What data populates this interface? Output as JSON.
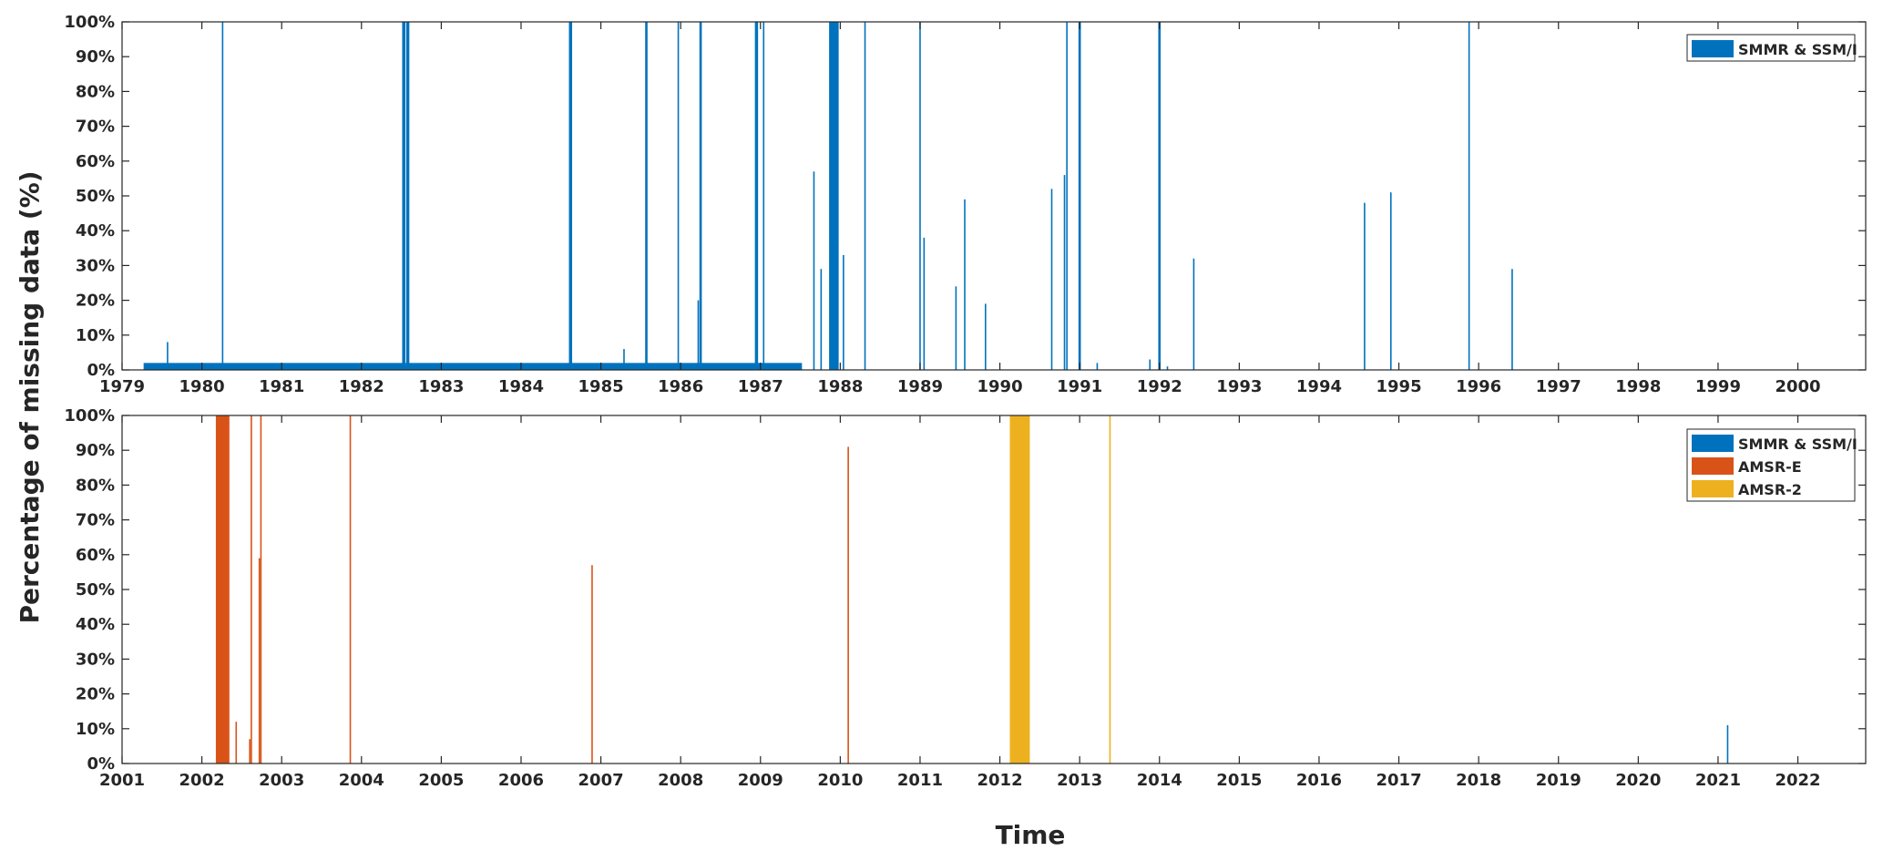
{
  "figure": {
    "ylabel": "Percentage of missing data (%)",
    "xlabel": "Time"
  },
  "colors": {
    "smmr_ssmi": "#0072BD",
    "amsr_e": "#D95319",
    "amsr_2": "#EDB120",
    "axis": "#262626"
  },
  "chart_data": [
    {
      "type": "bar",
      "title": "",
      "xlabel": "",
      "ylabel": "Percentage of missing data (%)",
      "xlim": [
        1979,
        2000.85
      ],
      "ylim": [
        0,
        100
      ],
      "xticks": [
        1979,
        1980,
        1981,
        1982,
        1983,
        1984,
        1985,
        1986,
        1987,
        1988,
        1989,
        1990,
        1991,
        1992,
        1993,
        1994,
        1995,
        1996,
        1997,
        1998,
        1999,
        2000
      ],
      "yticks": [
        "0%",
        "10%",
        "20%",
        "30%",
        "40%",
        "50%",
        "60%",
        "70%",
        "80%",
        "90%",
        "100%"
      ],
      "grid": false,
      "legend": {
        "position": "top-right",
        "entries": [
          "SMMR & SSM/I"
        ]
      },
      "series": [
        {
          "name": "SMMR & SSM/I",
          "color": "#0072BD",
          "baseline_band": {
            "x_start": 1979.27,
            "x_end": 1987.52,
            "value": 2
          },
          "bars": [
            {
              "x": 1979.57,
              "y": 8
            },
            {
              "x": 1980.26,
              "y": 100
            },
            {
              "x": 1982.53,
              "y": 100,
              "width": 0.04
            },
            {
              "x": 1982.58,
              "y": 100,
              "width": 0.04
            },
            {
              "x": 1984.62,
              "y": 100,
              "width": 0.04
            },
            {
              "x": 1985.29,
              "y": 6
            },
            {
              "x": 1985.57,
              "y": 100,
              "width": 0.03
            },
            {
              "x": 1985.97,
              "y": 100
            },
            {
              "x": 1986.22,
              "y": 20
            },
            {
              "x": 1986.25,
              "y": 100,
              "width": 0.03
            },
            {
              "x": 1986.95,
              "y": 100,
              "width": 0.04
            },
            {
              "x": 1987.04,
              "y": 100
            },
            {
              "x": 1987.67,
              "y": 57
            },
            {
              "x": 1987.76,
              "y": 29
            },
            {
              "x": 1987.92,
              "y": 100,
              "width": 0.12
            },
            {
              "x": 1988.04,
              "y": 33
            },
            {
              "x": 1988.31,
              "y": 100
            },
            {
              "x": 1989.0,
              "y": 100
            },
            {
              "x": 1989.05,
              "y": 38
            },
            {
              "x": 1989.45,
              "y": 24
            },
            {
              "x": 1989.56,
              "y": 49
            },
            {
              "x": 1989.82,
              "y": 19
            },
            {
              "x": 1990.65,
              "y": 52
            },
            {
              "x": 1990.81,
              "y": 56
            },
            {
              "x": 1990.84,
              "y": 100
            },
            {
              "x": 1991.0,
              "y": 100,
              "width": 0.03
            },
            {
              "x": 1991.22,
              "y": 2
            },
            {
              "x": 1991.88,
              "y": 3
            },
            {
              "x": 1992.0,
              "y": 100,
              "width": 0.03
            },
            {
              "x": 1992.1,
              "y": 1
            },
            {
              "x": 1992.43,
              "y": 32
            },
            {
              "x": 1994.57,
              "y": 48
            },
            {
              "x": 1994.9,
              "y": 51
            },
            {
              "x": 1995.88,
              "y": 100
            },
            {
              "x": 1996.42,
              "y": 29
            }
          ]
        }
      ]
    },
    {
      "type": "bar",
      "title": "",
      "xlabel": "Time",
      "ylabel": "Percentage of missing data (%)",
      "xlim": [
        2001,
        2022.85
      ],
      "ylim": [
        0,
        100
      ],
      "xticks": [
        2001,
        2002,
        2003,
        2004,
        2005,
        2006,
        2007,
        2008,
        2009,
        2010,
        2011,
        2012,
        2013,
        2014,
        2015,
        2016,
        2017,
        2018,
        2019,
        2020,
        2021,
        2022
      ],
      "yticks": [
        "0%",
        "10%",
        "20%",
        "30%",
        "40%",
        "50%",
        "60%",
        "70%",
        "80%",
        "90%",
        "100%"
      ],
      "grid": false,
      "legend": {
        "position": "top-right",
        "entries": [
          "SMMR & SSM/I",
          "AMSR-E",
          "AMSR-2"
        ]
      },
      "series": [
        {
          "name": "SMMR & SSM/I",
          "color": "#0072BD",
          "bars": [
            {
              "x": 2021.12,
              "y": 11
            }
          ]
        },
        {
          "name": "AMSR-E",
          "color": "#D95319",
          "bars": [
            {
              "x": 2002.26,
              "y": 100,
              "width": 0.17
            },
            {
              "x": 2002.43,
              "y": 12
            },
            {
              "x": 2002.6,
              "y": 7
            },
            {
              "x": 2002.62,
              "y": 100
            },
            {
              "x": 2002.72,
              "y": 59
            },
            {
              "x": 2002.74,
              "y": 100
            },
            {
              "x": 2003.86,
              "y": 100
            },
            {
              "x": 2006.89,
              "y": 57
            },
            {
              "x": 2010.1,
              "y": 91
            }
          ]
        },
        {
          "name": "AMSR-2",
          "color": "#EDB120",
          "bars": [
            {
              "x": 2012.25,
              "y": 100,
              "width": 0.25
            },
            {
              "x": 2013.38,
              "y": 100
            }
          ]
        }
      ]
    }
  ]
}
